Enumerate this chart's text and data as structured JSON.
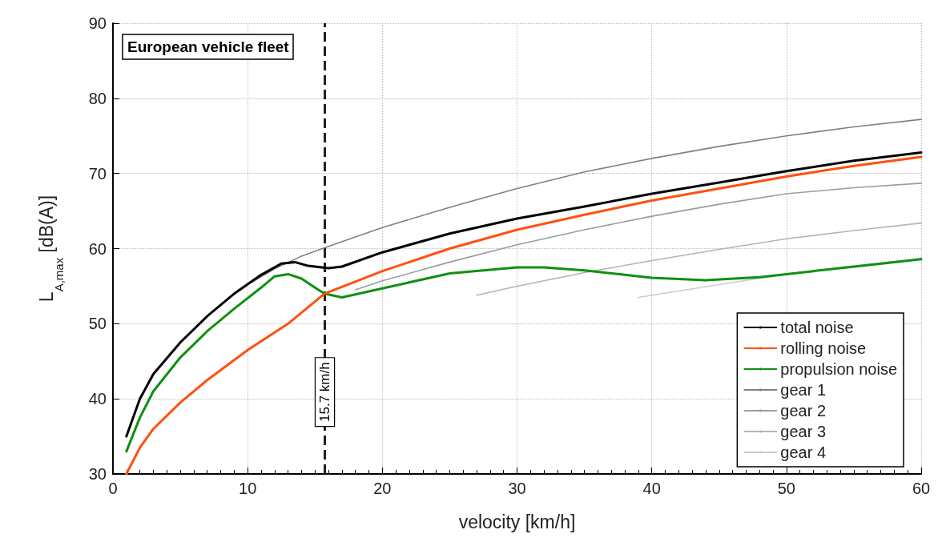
{
  "chart_data": {
    "type": "line",
    "xlabel": "velocity [km/h]",
    "ylabel": "L$_{A,max}$ [dB(A)]",
    "annotations": [
      "European vehicle fleet"
    ],
    "xlim": [
      0,
      60
    ],
    "xticks": [
      0,
      10,
      20,
      30,
      40,
      50,
      60
    ],
    "ylim": [
      30,
      90
    ],
    "yticks": [
      30,
      40,
      50,
      60,
      70,
      80,
      90
    ],
    "grid": true,
    "legend": "bottom right",
    "marker": "none",
    "line_style": "solid",
    "ref_lines": [
      {
        "axis": "x",
        "value": 15.7,
        "label": "15.7 km/h",
        "color": "#222222",
        "line_style": "dashed"
      }
    ],
    "series": [
      {
        "name": "total noise",
        "color": "#000000",
        "x": [
          1,
          2,
          3,
          5,
          7,
          9,
          11,
          12.5,
          13.5,
          14.5,
          16,
          17,
          20,
          25,
          30,
          35,
          40,
          45,
          50,
          55,
          60
        ],
        "values": [
          35,
          40,
          43.3,
          47.5,
          51,
          54,
          56.5,
          58,
          58.2,
          57.7,
          57.4,
          57.6,
          59.5,
          62,
          64,
          65.6,
          67.3,
          68.8,
          70.3,
          71.7,
          72.8
        ]
      },
      {
        "name": "rolling noise",
        "color": "#ff5010",
        "x": [
          1,
          2,
          3,
          5,
          7,
          10,
          13,
          15.7,
          20,
          25,
          30,
          35,
          40,
          45,
          50,
          55,
          60
        ],
        "values": [
          30,
          33.5,
          36,
          39.5,
          42.5,
          46.5,
          50,
          54,
          57,
          60,
          62.5,
          64.5,
          66.4,
          68,
          69.6,
          71,
          72.2
        ]
      },
      {
        "name": "propulsion noise",
        "color": "#109010",
        "x": [
          1,
          2,
          3,
          5,
          7,
          9,
          11,
          12,
          13,
          14,
          15,
          15.7,
          17,
          20,
          25,
          30,
          32,
          35,
          40,
          44,
          48,
          52,
          56,
          60
        ],
        "values": [
          33,
          37.5,
          41,
          45.5,
          49,
          52,
          54.8,
          56.3,
          56.6,
          56,
          54.8,
          54,
          53.5,
          54.7,
          56.7,
          57.5,
          57.5,
          57.1,
          56.1,
          55.8,
          56.2,
          57,
          57.8,
          58.6
        ]
      },
      {
        "name": "gear 1",
        "color": "#808080",
        "x": [
          9,
          10,
          12,
          14,
          16,
          20,
          25,
          30,
          35,
          40,
          45,
          50,
          55,
          60
        ],
        "values": [
          53.9,
          55.2,
          57.3,
          59,
          60.3,
          62.8,
          65.5,
          68,
          70.2,
          72,
          73.6,
          75,
          76.2,
          77.2
        ]
      },
      {
        "name": "gear 2",
        "color": "#9c9c9c",
        "x": [
          18,
          20,
          25,
          30,
          35,
          40,
          45,
          50,
          55,
          60
        ],
        "values": [
          54.5,
          55.7,
          58.2,
          60.5,
          62.5,
          64.3,
          65.9,
          67.3,
          68.1,
          68.7
        ]
      },
      {
        "name": "gear 3",
        "color": "#b4b4b4",
        "x": [
          27,
          30,
          35,
          40,
          45,
          50,
          55,
          60
        ],
        "values": [
          53.8,
          55,
          56.8,
          58.4,
          59.9,
          61.3,
          62.4,
          63.4
        ]
      },
      {
        "name": "gear 4",
        "color": "#cccccc",
        "x": [
          39,
          45,
          50,
          55,
          60
        ],
        "values": [
          53.5,
          55.2,
          56.6,
          57.7,
          58.7
        ]
      }
    ]
  }
}
